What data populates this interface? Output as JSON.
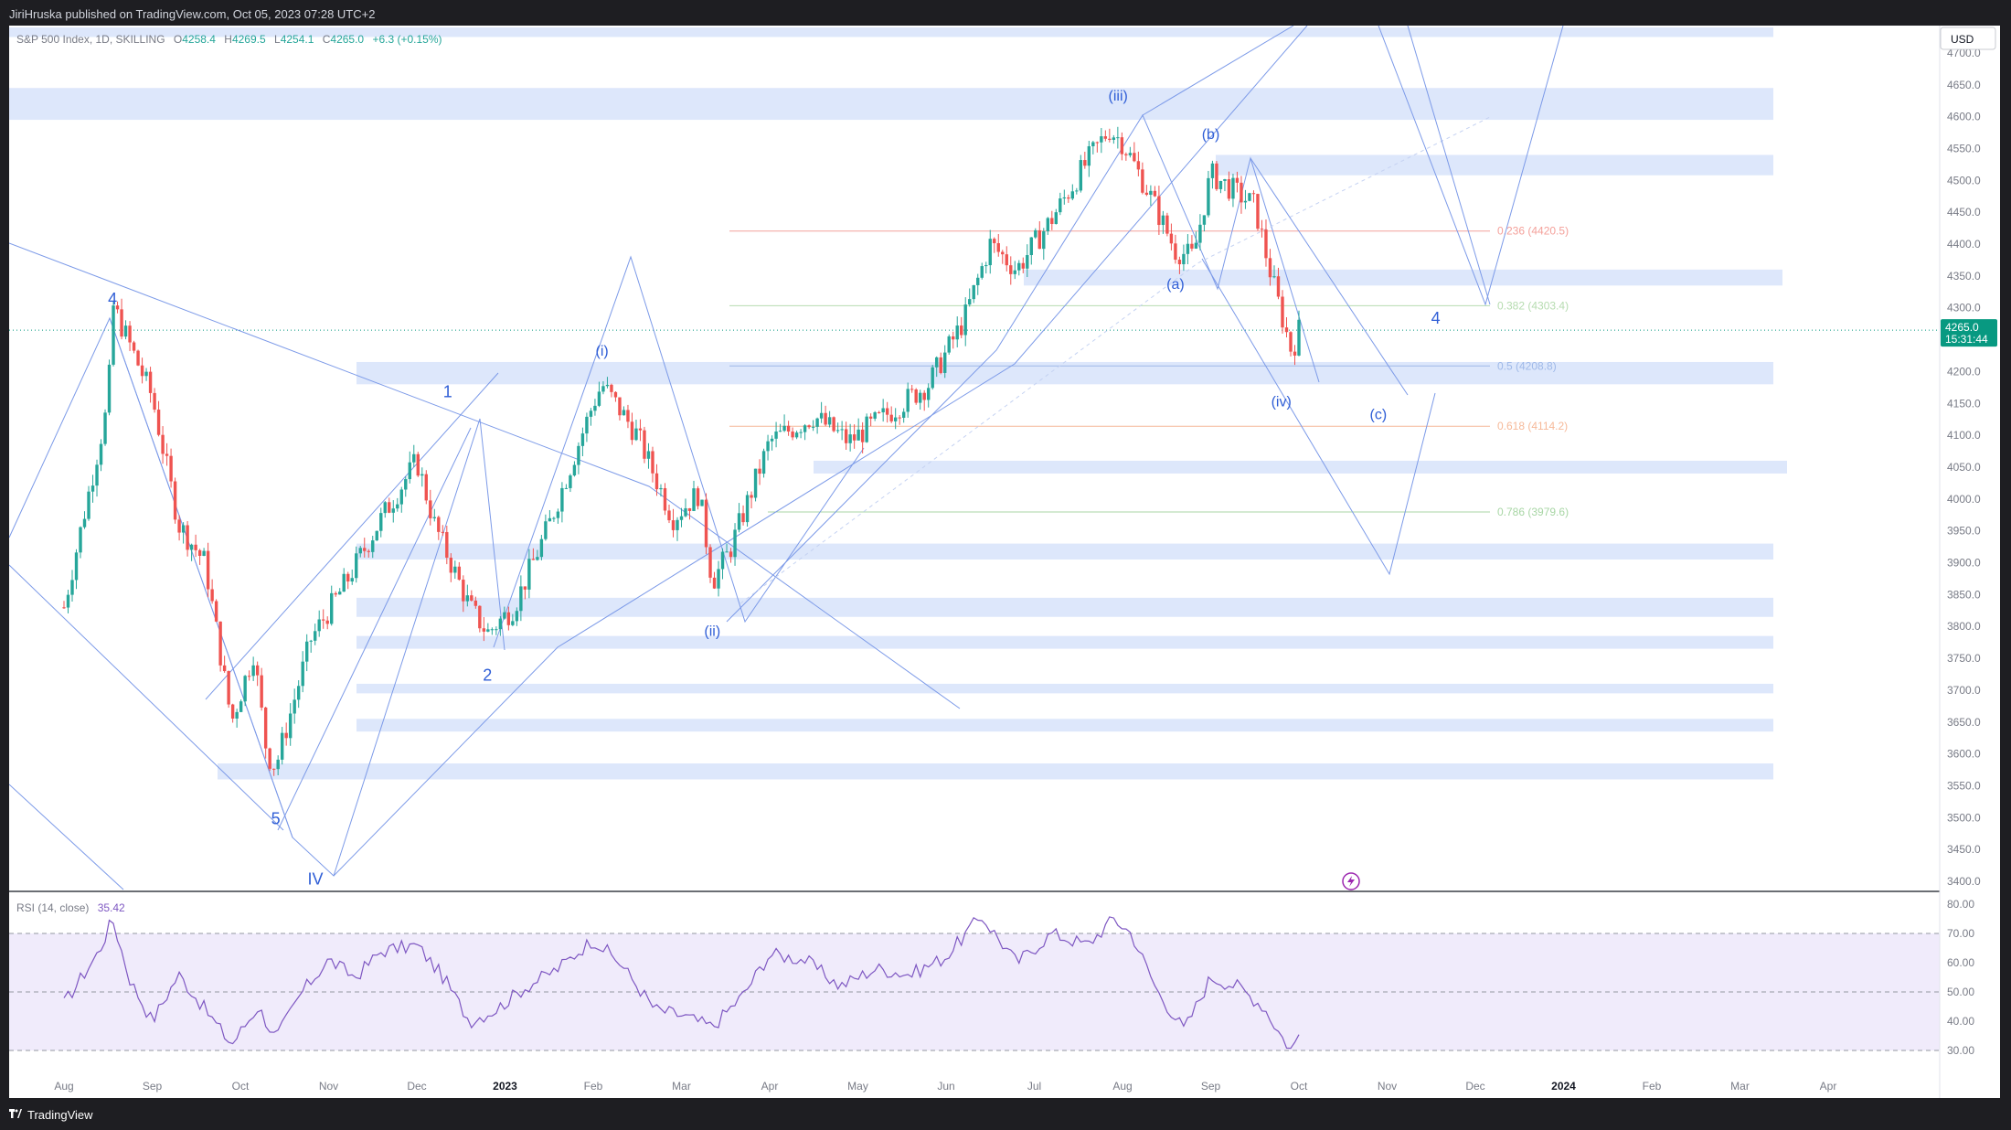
{
  "header": {
    "published_text": "JiriHruska published on TradingView.com, Oct 05, 2023 07:28 UTC+2"
  },
  "footer": {
    "brand": "TradingView"
  },
  "legend": {
    "symbol": "S&P 500 Index, 1D, SKILLING",
    "o_label": "O",
    "o_value": "4258.4",
    "h_label": "H",
    "h_value": "4269.5",
    "l_label": "L",
    "l_value": "4254.1",
    "c_label": "C",
    "c_value": "4265.0",
    "change": "+6.3 (+0.15%)"
  },
  "currency": "USD",
  "price_tag": {
    "price": "4265.0",
    "countdown": "15:31:44"
  },
  "rsi": {
    "label": "RSI (14, close)",
    "value": "35.42"
  },
  "colors": {
    "up": "#26a69a",
    "down": "#ef5350",
    "wave": "#6a8fe8",
    "zone": "#dde7fb",
    "rsi_line": "#7e57c2",
    "rsi_band": "#f0ebfb",
    "tag": "#089981"
  },
  "chart_data": [
    {
      "type": "candlestick",
      "title": "S&P 500 Index, 1D, SKILLING",
      "x_axis_labels": [
        "Aug",
        "Sep",
        "Oct",
        "Nov",
        "Dec",
        "2023",
        "Feb",
        "Mar",
        "Apr",
        "May",
        "Jun",
        "Jul",
        "Aug",
        "Sep",
        "Oct",
        "Nov",
        "Dec",
        "2024",
        "Feb",
        "Mar",
        "Apr"
      ],
      "ylim": [
        3380,
        4740
      ],
      "y_ticks": [
        3400,
        3450,
        3500,
        3550,
        3600,
        3650,
        3700,
        3750,
        3800,
        3850,
        3900,
        3950,
        4000,
        4050,
        4100,
        4150,
        4200,
        4250,
        4300,
        4350,
        4400,
        4450,
        4500,
        4550,
        4600,
        4650,
        4700
      ],
      "last_price": 4265.0,
      "price_path": [
        {
          "month": 0.0,
          "close": 3830
        },
        {
          "month": 0.5,
          "close": 4150
        },
        {
          "month": 0.55,
          "close": 4305
        },
        {
          "month": 1.0,
          "close": 4160
        },
        {
          "month": 1.3,
          "close": 3960
        },
        {
          "month": 1.6,
          "close": 3900
        },
        {
          "month": 1.9,
          "close": 3650
        },
        {
          "month": 2.15,
          "close": 3760
        },
        {
          "month": 2.3,
          "close": 3600
        },
        {
          "month": 2.4,
          "close": 3580
        },
        {
          "month": 2.8,
          "close": 3780
        },
        {
          "month": 3.2,
          "close": 3870
        },
        {
          "month": 3.6,
          "close": 3970
        },
        {
          "month": 4.0,
          "close": 4060
        },
        {
          "month": 4.2,
          "close": 3960
        },
        {
          "month": 4.6,
          "close": 3830
        },
        {
          "month": 4.8,
          "close": 3790
        },
        {
          "month": 5.1,
          "close": 3830
        },
        {
          "month": 5.5,
          "close": 3960
        },
        {
          "month": 6.0,
          "close": 4150
        },
        {
          "month": 6.1,
          "close": 4180
        },
        {
          "month": 6.5,
          "close": 4100
        },
        {
          "month": 6.9,
          "close": 3970
        },
        {
          "month": 7.2,
          "close": 4010
        },
        {
          "month": 7.35,
          "close": 3870
        },
        {
          "month": 7.55,
          "close": 3920
        },
        {
          "month": 8.0,
          "close": 4090
        },
        {
          "month": 8.5,
          "close": 4130
        },
        {
          "month": 8.9,
          "close": 4090
        },
        {
          "month": 9.3,
          "close": 4130
        },
        {
          "month": 9.8,
          "close": 4180
        },
        {
          "month": 10.2,
          "close": 4280
        },
        {
          "month": 10.5,
          "close": 4400
        },
        {
          "month": 10.8,
          "close": 4360
        },
        {
          "month": 11.2,
          "close": 4440
        },
        {
          "month": 11.6,
          "close": 4530
        },
        {
          "month": 11.85,
          "close": 4580
        },
        {
          "month": 12.0,
          "close": 4560
        },
        {
          "month": 12.3,
          "close": 4480
        },
        {
          "month": 12.6,
          "close": 4390
        },
        {
          "month": 12.8,
          "close": 4380
        },
        {
          "month": 13.0,
          "close": 4510
        },
        {
          "month": 13.2,
          "close": 4490
        },
        {
          "month": 13.5,
          "close": 4460
        },
        {
          "month": 13.65,
          "close": 4370
        },
        {
          "month": 13.8,
          "close": 4290
        },
        {
          "month": 13.92,
          "close": 4230
        },
        {
          "month": 14.0,
          "close": 4265
        }
      ],
      "fibonacci": [
        {
          "ratio_label": "0.236 (4420.5)",
          "price": 4420.5,
          "color": "#f4a09a"
        },
        {
          "ratio_label": "0.382 (4303.4)",
          "price": 4303.4,
          "color": "#b6dcb0"
        },
        {
          "ratio_label": "0.5 (4208.8)",
          "price": 4208.8,
          "color": "#9fb9e8"
        },
        {
          "ratio_label": "0.618 (4114.2)",
          "price": 4114.2,
          "color": "#f6b999"
        },
        {
          "ratio_label": "0.786 (3979.6)",
          "price": 3979.6,
          "color": "#a8d6a5"
        }
      ],
      "zones": [
        {
          "top": 4645,
          "bottom": 4595
        },
        {
          "top": 4540,
          "bottom": 4508
        },
        {
          "top": 4360,
          "bottom": 4335
        },
        {
          "top": 4215,
          "bottom": 4180
        },
        {
          "top": 4060,
          "bottom": 4040
        },
        {
          "top": 3930,
          "bottom": 3905
        },
        {
          "top": 3845,
          "bottom": 3815
        },
        {
          "top": 3785,
          "bottom": 3765
        },
        {
          "top": 3710,
          "bottom": 3695
        },
        {
          "top": 3655,
          "bottom": 3635
        },
        {
          "top": 3585,
          "bottom": 3560
        },
        {
          "top": 4740,
          "bottom": 4725
        }
      ],
      "wave_labels": [
        {
          "text": "4",
          "month": 0.55,
          "price": 4305
        },
        {
          "text": "5",
          "month": 2.4,
          "price": 3490
        },
        {
          "text": "IV",
          "month": 2.85,
          "price": 3395
        },
        {
          "text": "1",
          "month": 4.35,
          "price": 4160
        },
        {
          "text": "2",
          "month": 4.8,
          "price": 3715
        },
        {
          "text": "(i)",
          "month": 6.1,
          "price": 4225
        },
        {
          "text": "(ii)",
          "month": 7.35,
          "price": 3785
        },
        {
          "text": "(iii)",
          "month": 11.95,
          "price": 4625
        },
        {
          "text": "(a)",
          "month": 12.6,
          "price": 4330
        },
        {
          "text": "(b)",
          "month": 13.0,
          "price": 4565
        },
        {
          "text": "(iv)",
          "month": 13.8,
          "price": 4145
        },
        {
          "text": "(c)",
          "month": 14.9,
          "price": 4125
        },
        {
          "text": "4",
          "month": 15.55,
          "price": 4275
        }
      ]
    },
    {
      "type": "line",
      "title": "RSI (14, close)",
      "ylim": [
        25,
        82
      ],
      "y_ticks": [
        30,
        40,
        50,
        60,
        70,
        80
      ],
      "band": [
        30,
        70
      ],
      "last_value": 35.42,
      "points": [
        {
          "month": 0.0,
          "value": 46
        },
        {
          "month": 0.4,
          "value": 64
        },
        {
          "month": 0.55,
          "value": 75
        },
        {
          "month": 0.75,
          "value": 54
        },
        {
          "month": 1.0,
          "value": 40
        },
        {
          "month": 1.3,
          "value": 56
        },
        {
          "month": 1.6,
          "value": 44
        },
        {
          "month": 1.9,
          "value": 32
        },
        {
          "month": 2.2,
          "value": 45
        },
        {
          "month": 2.4,
          "value": 34
        },
        {
          "month": 2.7,
          "value": 50
        },
        {
          "month": 3.0,
          "value": 61
        },
        {
          "month": 3.3,
          "value": 55
        },
        {
          "month": 3.6,
          "value": 64
        },
        {
          "month": 4.0,
          "value": 66
        },
        {
          "month": 4.3,
          "value": 55
        },
        {
          "month": 4.6,
          "value": 40
        },
        {
          "month": 4.9,
          "value": 44
        },
        {
          "month": 5.2,
          "value": 51
        },
        {
          "month": 5.6,
          "value": 58
        },
        {
          "month": 6.0,
          "value": 68
        },
        {
          "month": 6.3,
          "value": 60
        },
        {
          "month": 6.7,
          "value": 44
        },
        {
          "month": 7.0,
          "value": 42
        },
        {
          "month": 7.35,
          "value": 38
        },
        {
          "month": 7.7,
          "value": 49
        },
        {
          "month": 8.0,
          "value": 63
        },
        {
          "month": 8.4,
          "value": 61
        },
        {
          "month": 8.8,
          "value": 52
        },
        {
          "month": 9.2,
          "value": 58
        },
        {
          "month": 9.6,
          "value": 56
        },
        {
          "month": 10.0,
          "value": 62
        },
        {
          "month": 10.4,
          "value": 76
        },
        {
          "month": 10.8,
          "value": 60
        },
        {
          "month": 11.2,
          "value": 70
        },
        {
          "month": 11.6,
          "value": 66
        },
        {
          "month": 11.9,
          "value": 75
        },
        {
          "month": 12.1,
          "value": 70
        },
        {
          "month": 12.4,
          "value": 50
        },
        {
          "month": 12.7,
          "value": 37
        },
        {
          "month": 13.0,
          "value": 55
        },
        {
          "month": 13.3,
          "value": 52
        },
        {
          "month": 13.6,
          "value": 45
        },
        {
          "month": 13.8,
          "value": 35
        },
        {
          "month": 13.92,
          "value": 30
        },
        {
          "month": 14.0,
          "value": 35.42
        }
      ]
    }
  ]
}
